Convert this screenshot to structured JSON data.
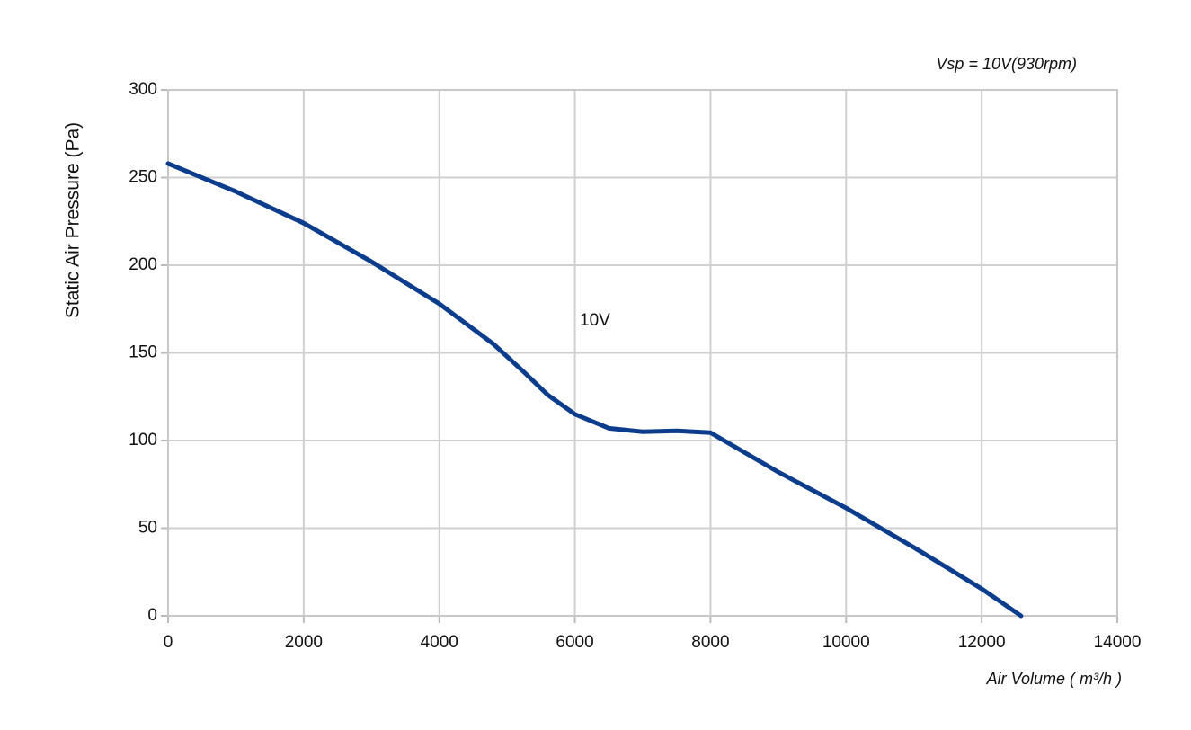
{
  "chart_data": {
    "type": "line",
    "subtitle": "Vsp = 10V(930rpm)",
    "annotation": "10V",
    "x_label": "Air Volume ( m³/h )",
    "y_label": "Static Air Pressure  (Pa)",
    "series": [
      {
        "name": "10V",
        "color": "#0b3d8c",
        "x": [
          0,
          1000,
          2000,
          3000,
          4000,
          4800,
          5250,
          5600,
          6000,
          6500,
          7000,
          7500,
          8000,
          9000,
          10000,
          11000,
          12000,
          12580
        ],
        "values": [
          258,
          242,
          224,
          202,
          178,
          155,
          139,
          126,
          115,
          107,
          105,
          105.5,
          104.5,
          82,
          61.5,
          39,
          15.4,
          0
        ]
      }
    ],
    "xlim": [
      0,
      14000
    ],
    "xticks": [
      0,
      2000,
      4000,
      6000,
      8000,
      10000,
      12000,
      14000
    ],
    "ylim": [
      0,
      300
    ],
    "yticks": [
      0,
      50,
      100,
      150,
      200,
      250,
      300
    ],
    "grid": true
  }
}
